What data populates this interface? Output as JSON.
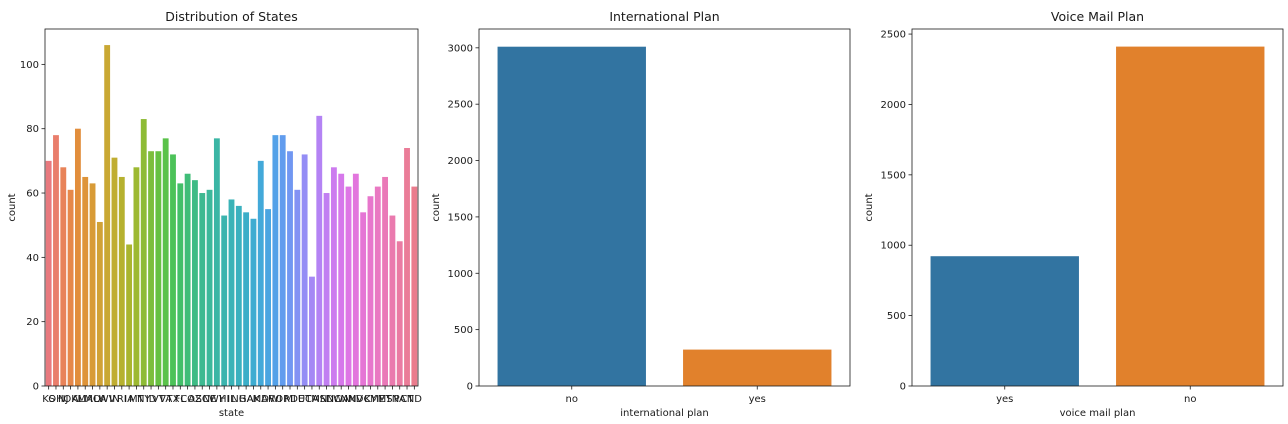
{
  "chart_data": [
    {
      "type": "bar",
      "title": "Distribution of States",
      "xlabel": "state",
      "ylabel": "count",
      "ylim": [
        0,
        111
      ],
      "yticks": [
        0,
        20,
        40,
        60,
        80,
        100
      ],
      "grid": false,
      "categories": [
        "KS",
        "OH",
        "NJ",
        "OK",
        "AL",
        "MA",
        "MO",
        "LA",
        "WV",
        "IN",
        "RI",
        "IA",
        "MT",
        "NY",
        "ID",
        "VT",
        "VA",
        "TX",
        "FL",
        "CO",
        "AZ",
        "SC",
        "NE",
        "WY",
        "HI",
        "IL",
        "NH",
        "GA",
        "AK",
        "MD",
        "AR",
        "WI",
        "OR",
        "MI",
        "DE",
        "UT",
        "CA",
        "MN",
        "SD",
        "NC",
        "WA",
        "NM",
        "NV",
        "DC",
        "KY",
        "ME",
        "MS",
        "TN",
        "PA",
        "CT",
        "ND"
      ],
      "values": [
        70,
        78,
        68,
        61,
        80,
        65,
        63,
        51,
        106,
        71,
        65,
        44,
        68,
        83,
        73,
        73,
        77,
        72,
        63,
        66,
        64,
        60,
        61,
        77,
        53,
        58,
        56,
        54,
        52,
        70,
        55,
        78,
        78,
        73,
        61,
        72,
        34,
        84,
        60,
        68,
        66,
        62,
        66,
        54,
        59,
        62,
        65,
        53,
        45,
        74,
        62
      ],
      "colors": [
        "#e8797e",
        "#e97e6c",
        "#e88359",
        "#e6884a",
        "#e28e3c",
        "#de943a",
        "#d89b37",
        "#d1a236",
        "#c9a833",
        "#c0ad31",
        "#b6b12f",
        "#aab52e",
        "#9db931",
        "#8ebb36",
        "#7cbe3c",
        "#66c142",
        "#5ac24a",
        "#4cc259",
        "#43bf69",
        "#40bd78",
        "#3ebb85",
        "#3db991",
        "#3cb89b",
        "#3bb6a5",
        "#3bb4ae",
        "#3ab3b7",
        "#3ab1bf",
        "#3baec8",
        "#3eacd1",
        "#43a9d9",
        "#4aa5e1",
        "#54a1e8",
        "#619cee",
        "#7197f2",
        "#8392f4",
        "#948df5",
        "#a588f5",
        "#b483f4",
        "#c17ff2",
        "#cc7bef",
        "#d678eb",
        "#de76e5",
        "#e275dd",
        "#e575d5",
        "#e776cc",
        "#e978c2",
        "#ea79b8",
        "#ea7aae",
        "#ea7ba3",
        "#ea7c98",
        "#ea7c8d"
      ]
    },
    {
      "type": "bar",
      "title": "International Plan",
      "xlabel": "international plan",
      "ylabel": "count",
      "ylim": [
        0,
        3167
      ],
      "yticks": [
        0,
        500,
        1000,
        1500,
        2000,
        2500,
        3000
      ],
      "grid": false,
      "categories": [
        "no",
        "yes"
      ],
      "values": [
        3010,
        323
      ],
      "colors": [
        "#3274a1",
        "#e1812c"
      ]
    },
    {
      "type": "bar",
      "title": "Voice Mail Plan",
      "xlabel": "voice mail plan",
      "ylabel": "count",
      "ylim": [
        0,
        2536
      ],
      "yticks": [
        0,
        500,
        1000,
        1500,
        2000,
        2500
      ],
      "grid": false,
      "categories": [
        "yes",
        "no"
      ],
      "values": [
        922,
        2411
      ],
      "colors": [
        "#3274a1",
        "#e1812c"
      ]
    }
  ]
}
